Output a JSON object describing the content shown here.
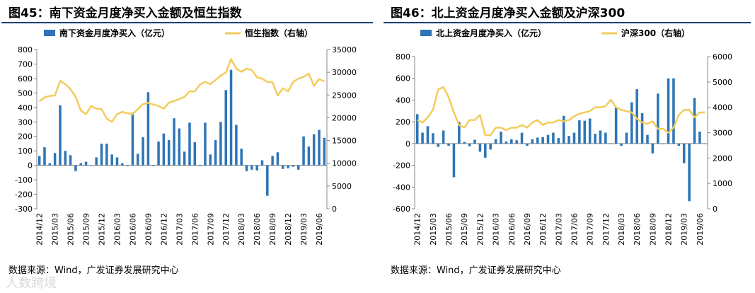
{
  "figures": [
    {
      "title": "图45：南下资金月度净买入金额及恒生指数",
      "source": "数据来源：Wind，广发证券发展研究中心"
    },
    {
      "title": "图46：北上资金月度净买入金额及沪深300",
      "source": "数据来源：Wind，广发证券发展研究中心"
    }
  ],
  "watermark": "人数跨境",
  "chart_data": [
    {
      "type": "bar",
      "bar_color": "#2e75b6",
      "line_color": "#f2cc5b",
      "categories": [
        "2014/12",
        "2015/01",
        "2015/02",
        "2015/03",
        "2015/04",
        "2015/05",
        "2015/06",
        "2015/07",
        "2015/08",
        "2015/09",
        "2015/10",
        "2015/11",
        "2015/12",
        "2016/01",
        "2016/02",
        "2016/03",
        "2016/04",
        "2016/05",
        "2016/06",
        "2016/07",
        "2016/08",
        "2016/09",
        "2016/10",
        "2016/11",
        "2016/12",
        "2017/01",
        "2017/02",
        "2017/03",
        "2017/04",
        "2017/05",
        "2017/06",
        "2017/07",
        "2017/08",
        "2017/09",
        "2017/10",
        "2017/11",
        "2017/12",
        "2018/01",
        "2018/02",
        "2018/03",
        "2018/04",
        "2018/05",
        "2018/06",
        "2018/07",
        "2018/08",
        "2018/09",
        "2018/10",
        "2018/11",
        "2018/12",
        "2019/01",
        "2019/02",
        "2019/03",
        "2019/04",
        "2019/05",
        "2019/06",
        "2019/07"
      ],
      "x_tick_labels": [
        "2014/12",
        "2015/03",
        "2015/06",
        "2015/09",
        "2015/12",
        "2016/03",
        "2016/06",
        "2016/09",
        "2016/12",
        "2017/03",
        "2017/06",
        "2017/09",
        "2017/12",
        "2018/03",
        "2018/06",
        "2018/09",
        "2018/12",
        "2019/03",
        "2019/06"
      ],
      "y_left": {
        "min": -300,
        "max": 800,
        "ticks": [
          -300,
          -200,
          -100,
          0,
          100,
          200,
          300,
          400,
          500,
          600,
          700,
          800
        ]
      },
      "y_right": {
        "min": 0,
        "max": 35000,
        "ticks": [
          0,
          5000,
          10000,
          15000,
          20000,
          25000,
          30000,
          35000
        ]
      },
      "series": [
        {
          "name": "南下资金月度净买入（亿元）",
          "kind": "bar",
          "axis": "left",
          "values": [
            65,
            125,
            15,
            85,
            415,
            100,
            70,
            -40,
            15,
            25,
            0,
            55,
            150,
            150,
            75,
            55,
            15,
            -5,
            365,
            80,
            195,
            505,
            -5,
            165,
            220,
            175,
            325,
            255,
            95,
            295,
            160,
            -5,
            295,
            75,
            175,
            300,
            520,
            660,
            280,
            115,
            -40,
            -30,
            -35,
            35,
            -210,
            65,
            90,
            -25,
            -20,
            -10,
            -30,
            200,
            130,
            215,
            245,
            190
          ]
        },
        {
          "name": "恒生指数（右轴）",
          "kind": "line",
          "axis": "right",
          "values": [
            23600,
            24500,
            24800,
            24900,
            28100,
            27400,
            26300,
            24600,
            21600,
            20800,
            22600,
            22000,
            21900,
            19800,
            19100,
            20800,
            21300,
            21000,
            20800,
            21900,
            23000,
            23300,
            22900,
            22600,
            22000,
            23300,
            23700,
            24100,
            24600,
            25800,
            25800,
            27300,
            27900,
            27400,
            28300,
            29300,
            29900,
            32900,
            30800,
            30100,
            30800,
            30500,
            28900,
            28600,
            27900,
            27800,
            24900,
            26500,
            25800,
            27900,
            28600,
            29000,
            29700,
            27000,
            28500,
            28000
          ]
        }
      ]
    },
    {
      "type": "bar",
      "bar_color": "#2e75b6",
      "line_color": "#f2cc5b",
      "categories": [
        "2014/12",
        "2015/01",
        "2015/02",
        "2015/03",
        "2015/04",
        "2015/05",
        "2015/06",
        "2015/07",
        "2015/08",
        "2015/09",
        "2015/10",
        "2015/11",
        "2015/12",
        "2016/01",
        "2016/02",
        "2016/03",
        "2016/04",
        "2016/05",
        "2016/06",
        "2016/07",
        "2016/08",
        "2016/09",
        "2016/10",
        "2016/11",
        "2016/12",
        "2017/01",
        "2017/02",
        "2017/03",
        "2017/04",
        "2017/05",
        "2017/06",
        "2017/07",
        "2017/08",
        "2017/09",
        "2017/10",
        "2017/11",
        "2017/12",
        "2018/01",
        "2018/02",
        "2018/03",
        "2018/04",
        "2018/05",
        "2018/06",
        "2018/07",
        "2018/08",
        "2018/09",
        "2018/10",
        "2018/11",
        "2018/12",
        "2019/01",
        "2019/02",
        "2019/03",
        "2019/04",
        "2019/05",
        "2019/06",
        "2019/07"
      ],
      "x_tick_labels": [
        "2014/12",
        "2015/03",
        "2015/06",
        "2015/09",
        "2015/12",
        "2016/03",
        "2016/06",
        "2016/09",
        "2016/12",
        "2017/03",
        "2017/06",
        "2017/09",
        "2017/12",
        "2018/03",
        "2018/06",
        "2018/09",
        "2018/12",
        "2019/03",
        "2019/06"
      ],
      "y_left": {
        "min": -600,
        "max": 800,
        "ticks": [
          -600,
          -400,
          -200,
          0,
          200,
          400,
          600,
          800
        ]
      },
      "y_right": {
        "min": 0,
        "max": 6000,
        "ticks": [
          0,
          1000,
          2000,
          3000,
          4000,
          5000,
          6000
        ]
      },
      "series": [
        {
          "name": "北上资金月度净买入（亿元）",
          "kind": "bar",
          "axis": "left",
          "values": [
            270,
            100,
            160,
            95,
            -30,
            120,
            -20,
            -310,
            200,
            15,
            -25,
            35,
            -75,
            -130,
            -55,
            40,
            110,
            20,
            40,
            30,
            100,
            -20,
            40,
            55,
            60,
            80,
            100,
            50,
            255,
            70,
            100,
            215,
            210,
            230,
            90,
            120,
            100,
            -5,
            330,
            -20,
            100,
            380,
            500,
            280,
            80,
            -90,
            460,
            -5,
            600,
            600,
            -20,
            -180,
            -530,
            420,
            110,
            0
          ]
        },
        {
          "name": "沪深300（右轴）",
          "kind": "line",
          "axis": "right",
          "values": [
            3500,
            3400,
            3600,
            3900,
            4700,
            4800,
            4400,
            3800,
            3300,
            3200,
            3500,
            3500,
            3700,
            2900,
            2900,
            3200,
            3200,
            3100,
            3200,
            3200,
            3300,
            3200,
            3400,
            3500,
            3300,
            3400,
            3400,
            3500,
            3450,
            3500,
            3650,
            3750,
            3800,
            3850,
            4000,
            4000,
            4050,
            4300,
            4000,
            3900,
            3850,
            3800,
            3550,
            3400,
            3350,
            3450,
            3150,
            3150,
            3000,
            3200,
            3700,
            3900,
            3900,
            3600,
            3800,
            3800
          ]
        }
      ]
    }
  ]
}
